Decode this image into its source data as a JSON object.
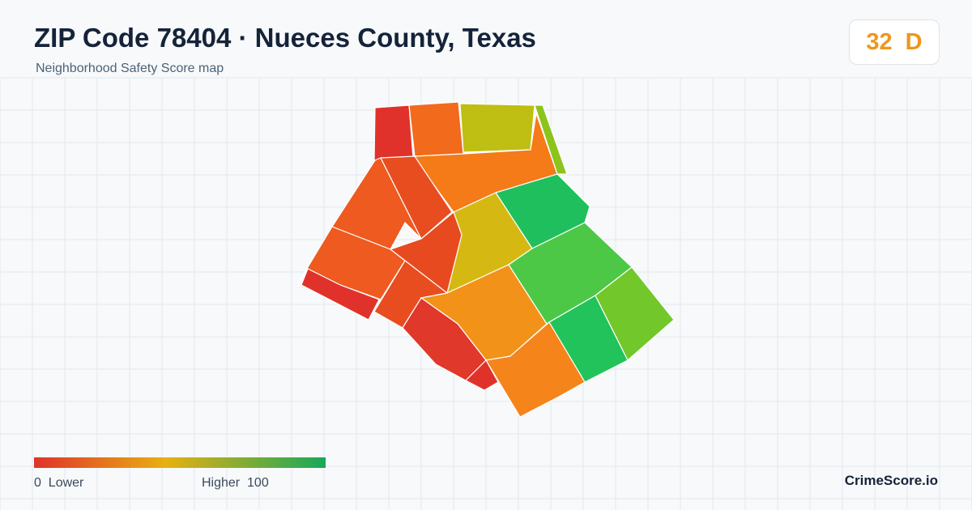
{
  "header": {
    "title": "ZIP Code 78404 · Nueces County, Texas",
    "subtitle": "Neighborhood Safety Score map"
  },
  "score": {
    "value": 32,
    "grade": "D"
  },
  "legend": {
    "min": 0,
    "min_label": "Lower",
    "max_label": "Higher",
    "max": 100
  },
  "brand": "CrimeScore.io"
}
